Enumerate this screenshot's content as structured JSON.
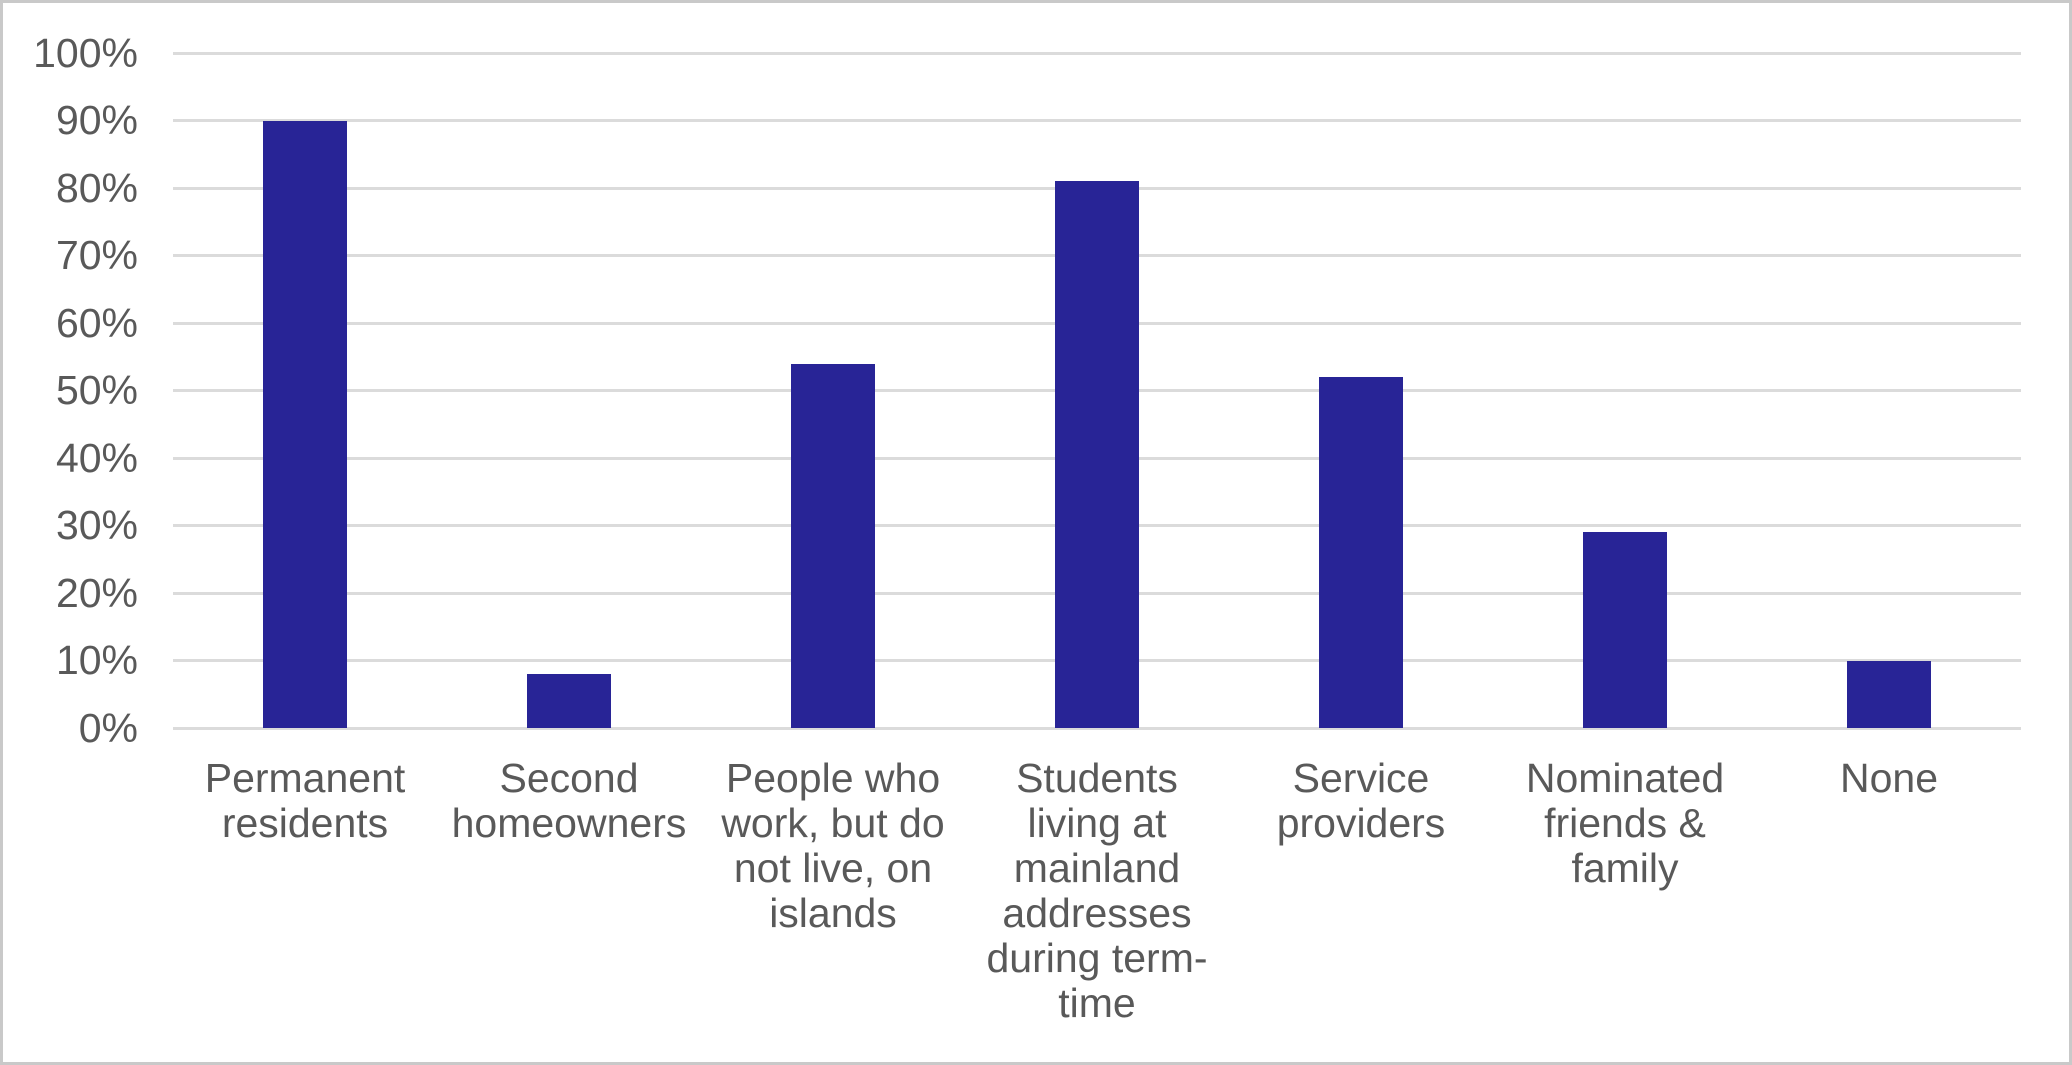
{
  "chart_data": {
    "type": "bar",
    "title": "",
    "xlabel": "",
    "ylabel": "",
    "legend": "none",
    "grid": "horizontal",
    "ylim": [
      0,
      100
    ],
    "ytick_labels": [
      "0%",
      "10%",
      "20%",
      "30%",
      "40%",
      "50%",
      "60%",
      "70%",
      "80%",
      "90%",
      "100%"
    ],
    "ytick_values": [
      0,
      10,
      20,
      30,
      40,
      50,
      60,
      70,
      80,
      90,
      100
    ],
    "categories": [
      "Permanent residents",
      "Second homeowners",
      "People who work, but do not live, on islands",
      "Students living at mainland addresses during term-time",
      "Service providers",
      "Nominated friends & family",
      "None"
    ],
    "category_lines": [
      [
        "Permanent",
        "residents"
      ],
      [
        "Second",
        "homeowners"
      ],
      [
        "People who",
        "work, but do",
        "not live, on",
        "islands"
      ],
      [
        "Students",
        "living at",
        "mainland",
        "addresses",
        "during term-",
        "time"
      ],
      [
        "Service",
        "providers"
      ],
      [
        "Nominated",
        "friends &",
        "family"
      ],
      [
        "None"
      ]
    ],
    "values": [
      90,
      8,
      54,
      81,
      52,
      29,
      10
    ]
  },
  "colors": {
    "bar": "#282496",
    "gridline": "#DBDBDB",
    "axis_text": "#595959",
    "frame_border": "#C9C9C9",
    "background": "#FFFFFF"
  }
}
